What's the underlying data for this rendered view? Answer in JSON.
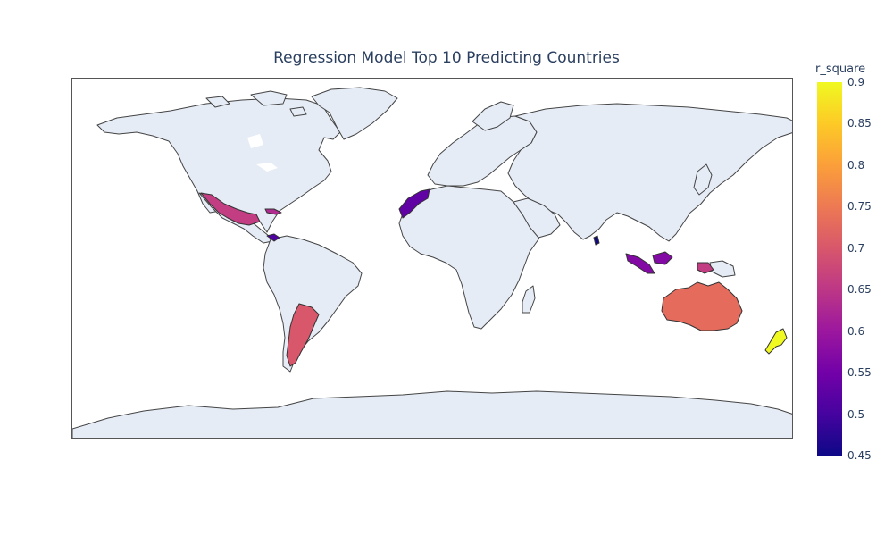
{
  "title": "Regression Model Top 10 Predicting Countries",
  "colorbar": {
    "title": "r_square",
    "min": 0.45,
    "max": 0.9,
    "ticks": [
      "0.9",
      "0.85",
      "0.8",
      "0.75",
      "0.7",
      "0.65",
      "0.6",
      "0.55",
      "0.5",
      "0.45"
    ],
    "colors": [
      "#0d0887",
      "#46039f",
      "#7201a8",
      "#9c179e",
      "#bd3786",
      "#d8576b",
      "#ed7953",
      "#fb9f3a",
      "#fdca26",
      "#f0f921"
    ]
  },
  "map": {
    "land_color": "#e5ecf6",
    "border_color": "#444444",
    "highlighted_regions": [
      {
        "r_square": 0.9
      },
      {
        "r_square": 0.73
      },
      {
        "r_square": 0.7
      },
      {
        "r_square": 0.66
      },
      {
        "r_square": 0.66
      },
      {
        "r_square": 0.63
      },
      {
        "r_square": 0.57
      },
      {
        "r_square": 0.53
      },
      {
        "r_square": 0.51
      },
      {
        "r_square": 0.45
      }
    ]
  }
}
